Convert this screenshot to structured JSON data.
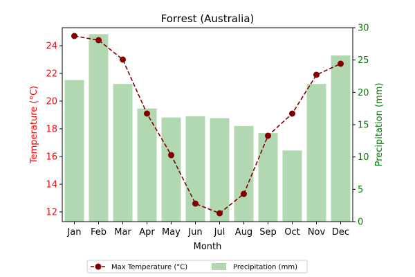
{
  "chart_data": {
    "type": "bar+line",
    "title": "Forrest (Australia)",
    "xlabel": "Month",
    "categories": [
      "Jan",
      "Feb",
      "Mar",
      "Apr",
      "May",
      "Jun",
      "Jul",
      "Aug",
      "Sep",
      "Oct",
      "Nov",
      "Dec"
    ],
    "y_left": {
      "label": "Temperature (°C)",
      "color": "#ff0000",
      "ylim": [
        11.3,
        25.3
      ],
      "ticks": [
        12,
        14,
        16,
        18,
        20,
        22,
        24
      ]
    },
    "y_right": {
      "label": "Precipitation (mm)",
      "color": "#008000",
      "ylim": [
        0,
        30.0
      ],
      "ticks": [
        0,
        5,
        10,
        15,
        20,
        25,
        30
      ]
    },
    "series": [
      {
        "name": "Max Temperature (°C)",
        "type": "line",
        "axis": "left",
        "color": "#800000",
        "linestyle": "dashed",
        "marker": "circle",
        "values": [
          24.7,
          24.4,
          23.0,
          19.1,
          16.1,
          12.6,
          11.9,
          13.3,
          17.5,
          19.1,
          21.9,
          22.7
        ]
      },
      {
        "name": "Precipitation (mm)",
        "type": "bar",
        "axis": "right",
        "color": "#b2d8b2",
        "values": [
          21.9,
          29.0,
          21.3,
          17.5,
          16.1,
          16.3,
          16.0,
          14.8,
          13.7,
          11.0,
          21.3,
          25.7
        ]
      }
    ],
    "legend": {
      "placement": "bottom-center"
    },
    "grid": false
  }
}
